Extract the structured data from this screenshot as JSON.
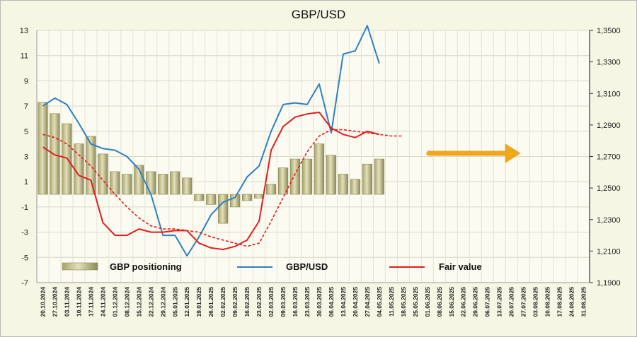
{
  "chart_data": {
    "type": "bar+line",
    "title": "GBP/USD",
    "x_tick_labels": [
      "20.10.2024",
      "27.10.2024",
      "03.11.2024",
      "10.11.2024",
      "17.11.2024",
      "24.11.2024",
      "01.12.2024",
      "08.12.2024",
      "15.12.2024",
      "22.12.2024",
      "29.12.2024",
      "05.01.2025",
      "12.01.2025",
      "19.01.2025",
      "26.01.2025",
      "02.02.2025",
      "09.02.2025",
      "16.02.2025",
      "23.02.2025",
      "02.03.2025",
      "09.03.2025",
      "16.03.2025",
      "23.03.2025",
      "30.03.2025",
      "06.04.2025",
      "13.04.2025",
      "20.04.2025",
      "27.04.2025",
      "04.05.2025",
      "11.05.2025",
      "18.05.2025",
      "25.05.2025",
      "01.06.2025",
      "08.06.2025",
      "15.06.2025",
      "22.06.2025",
      "29.06.2025",
      "06.07.2025",
      "13.07.2025",
      "20.07.2025",
      "27.07.2025",
      "03.08.2025",
      "10.08.2025",
      "17.08.2025",
      "24.08.2025",
      "31.08.2025"
    ],
    "y_left": {
      "ticks": [
        "13",
        "11",
        "9",
        "7",
        "5",
        "3",
        "1",
        "-1",
        "-3",
        "-5",
        "-7"
      ],
      "lim": [
        -7,
        13
      ]
    },
    "y_right": {
      "ticks": [
        "1,3500",
        "1,3300",
        "1,3100",
        "1,2900",
        "1,2700",
        "1,2500",
        "1,2300",
        "1,2100",
        "1,1900"
      ],
      "lim": [
        1.19,
        1.35
      ]
    },
    "grid": true,
    "legend": "bottom",
    "legend_labels": {
      "positioning": "GBP positioning",
      "price": "GBP/USD",
      "fair": "Fair value"
    },
    "series": [
      {
        "key": "positioning",
        "name": "GBP positioning",
        "kind": "bar",
        "axis": "left",
        "color": "#c5c18e",
        "values": [
          7.3,
          6.4,
          5.6,
          4.0,
          4.6,
          3.2,
          1.8,
          1.6,
          2.3,
          1.8,
          1.6,
          1.8,
          1.3,
          -0.5,
          -0.8,
          -2.3,
          -1.0,
          -0.5,
          -0.3,
          0.8,
          2.1,
          2.8,
          2.8,
          4.0,
          3.1,
          1.6,
          1.2,
          2.4,
          2.8
        ]
      },
      {
        "key": "price",
        "name": "GBP/USD",
        "kind": "line",
        "axis": "right",
        "color": "#2f7fc1",
        "values": [
          1.302,
          1.307,
          1.303,
          1.291,
          1.278,
          1.275,
          1.274,
          1.27,
          1.262,
          1.246,
          1.22,
          1.22,
          1.207,
          1.219,
          1.233,
          1.241,
          1.244,
          1.257,
          1.264,
          1.286,
          1.303,
          1.304,
          1.303,
          1.316,
          1.285,
          1.335,
          1.337,
          1.353,
          1.329
        ]
      },
      {
        "key": "fair",
        "name": "Fair value",
        "kind": "line",
        "axis": "right",
        "color": "#e01e1e",
        "values": [
          1.276,
          1.271,
          1.269,
          1.258,
          1.255,
          1.228,
          1.22,
          1.22,
          1.224,
          1.222,
          1.222,
          1.223,
          1.223,
          1.215,
          1.212,
          1.211,
          1.213,
          1.217,
          1.229,
          1.274,
          1.289,
          1.295,
          1.297,
          1.298,
          1.288,
          1.284,
          1.282,
          1.286,
          1.284
        ]
      },
      {
        "key": "fair_ma",
        "kind": "dashed-line",
        "axis": "right",
        "color": "#e01e1e",
        "values": [
          1.284,
          1.282,
          1.278,
          1.271,
          1.264,
          1.255,
          1.246,
          1.238,
          1.231,
          1.226,
          1.224,
          1.224,
          1.223,
          1.222,
          1.219,
          1.217,
          1.215,
          1.213,
          1.215,
          1.229,
          1.244,
          1.259,
          1.273,
          1.283,
          1.287,
          1.287,
          1.286,
          1.285,
          1.284,
          1.283,
          1.283
        ]
      }
    ],
    "annotation": {
      "type": "arrow",
      "direction": "right",
      "color": "#f0a71c",
      "from_index": 32,
      "to_index": 40,
      "at_right_value": 1.272
    }
  }
}
